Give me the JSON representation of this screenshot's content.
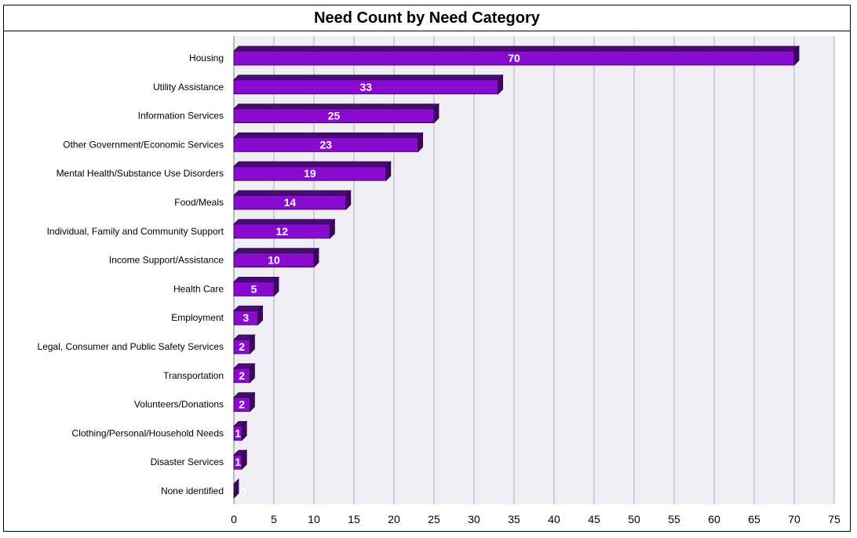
{
  "chart_data": {
    "type": "bar",
    "orientation": "horizontal",
    "title": "Need Count by Need Category",
    "categories": [
      "Housing",
      "Utility Assistance",
      "Information Services",
      "Other Government/Economic Services",
      "Mental Health/Substance Use Disorders",
      "Food/Meals",
      "Individual, Family and Community Support",
      "Income Support/Assistance",
      "Health Care",
      "Employment",
      "Legal, Consumer and Public Safety Services",
      "Transportation",
      "Volunteers/Donations",
      "Clothing/Personal/Household Needs",
      "Disaster Services",
      "None identified"
    ],
    "values": [
      70,
      33,
      25,
      23,
      19,
      14,
      12,
      10,
      5,
      3,
      2,
      2,
      2,
      1,
      1,
      0
    ],
    "xticks": [
      0,
      5,
      10,
      15,
      20,
      25,
      30,
      35,
      40,
      45,
      50,
      55,
      60,
      65,
      70,
      75
    ],
    "xlim": [
      0,
      75
    ],
    "grid": true,
    "colors": {
      "bar_front": "#8a0bd0",
      "bar_top": "#4a0a78",
      "bar_side": "#3c075e",
      "bar_edge": "#2a0040",
      "plot_bg": "#eeeef4",
      "grid": "#b8b8cc",
      "value_text": "#ffffff"
    }
  }
}
